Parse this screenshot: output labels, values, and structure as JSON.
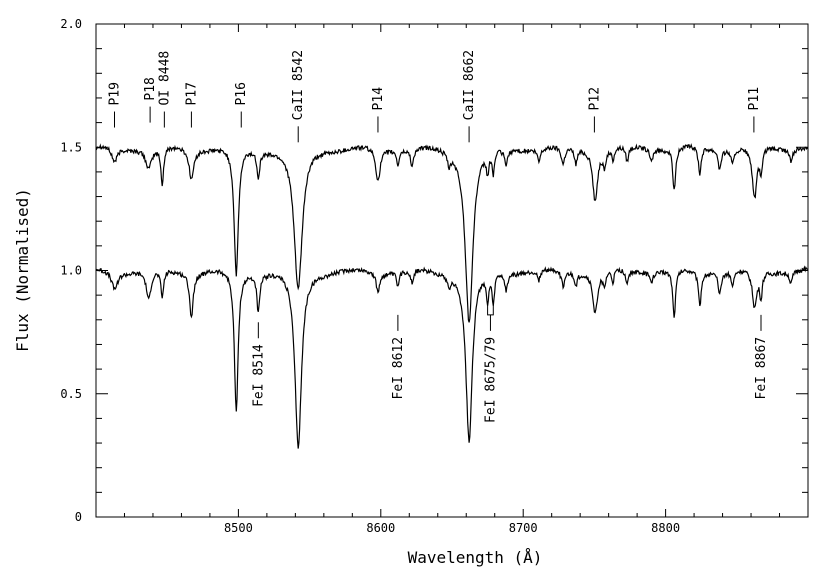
{
  "chart_data": {
    "type": "line",
    "title": "",
    "xlabel": "Wavelength (Å)",
    "ylabel": "Flux (Normalised)",
    "xlim": [
      8400,
      8900
    ],
    "ylim": [
      0,
      2.0
    ],
    "x_ticks": [
      8500,
      8600,
      8700,
      8800
    ],
    "y_ticks": [
      {
        "value": 0,
        "label": "0"
      },
      {
        "value": 0.5,
        "label": "0.5"
      },
      {
        "value": 1.0,
        "label": "1.0"
      },
      {
        "value": 1.5,
        "label": "1.5"
      },
      {
        "value": 2.0,
        "label": "2.0"
      }
    ],
    "grid": false,
    "series": [
      {
        "continuum": 1.5,
        "lines": [
          {
            "x": 8413,
            "depth": 0.06,
            "width": 2.5
          },
          {
            "x": 8437,
            "depth": 0.08,
            "width": 2.5
          },
          {
            "x": 8446.5,
            "depth": 0.15,
            "width": 1.2
          },
          {
            "x": 8467,
            "depth": 0.12,
            "width": 2.0
          },
          {
            "x": 8498.5,
            "depth": 0.52,
            "width": 1.8
          },
          {
            "x": 8514,
            "depth": 0.1,
            "width": 1.2
          },
          {
            "x": 8542,
            "depth": 0.58,
            "width": 3.5
          },
          {
            "x": 8598,
            "depth": 0.13,
            "width": 2.0
          },
          {
            "x": 8612,
            "depth": 0.06,
            "width": 1.0
          },
          {
            "x": 8622,
            "depth": 0.07,
            "width": 1.2
          },
          {
            "x": 8648,
            "depth": 0.05,
            "width": 1.2
          },
          {
            "x": 8662,
            "depth": 0.7,
            "width": 3.2
          },
          {
            "x": 8675,
            "depth": 0.08,
            "width": 1.0
          },
          {
            "x": 8679,
            "depth": 0.09,
            "width": 1.0
          },
          {
            "x": 8688,
            "depth": 0.06,
            "width": 1.5
          },
          {
            "x": 8711,
            "depth": 0.05,
            "width": 1.2
          },
          {
            "x": 8728,
            "depth": 0.07,
            "width": 1.5
          },
          {
            "x": 8737,
            "depth": 0.06,
            "width": 1.2
          },
          {
            "x": 8750.5,
            "depth": 0.21,
            "width": 2.0
          },
          {
            "x": 8757,
            "depth": 0.07,
            "width": 1.2
          },
          {
            "x": 8763,
            "depth": 0.05,
            "width": 1.0
          },
          {
            "x": 8773,
            "depth": 0.06,
            "width": 1.2
          },
          {
            "x": 8790,
            "depth": 0.05,
            "width": 1.2
          },
          {
            "x": 8806,
            "depth": 0.17,
            "width": 1.2
          },
          {
            "x": 8824,
            "depth": 0.11,
            "width": 1.2
          },
          {
            "x": 8838,
            "depth": 0.08,
            "width": 1.2
          },
          {
            "x": 8847,
            "depth": 0.06,
            "width": 1.2
          },
          {
            "x": 8862.5,
            "depth": 0.21,
            "width": 2.0
          },
          {
            "x": 8867,
            "depth": 0.1,
            "width": 1.0
          },
          {
            "x": 8888,
            "depth": 0.05,
            "width": 1.2
          }
        ]
      },
      {
        "continuum": 1.0,
        "lines": [
          {
            "x": 8413,
            "depth": 0.07,
            "width": 2.5
          },
          {
            "x": 8437,
            "depth": 0.12,
            "width": 2.0
          },
          {
            "x": 8446.5,
            "depth": 0.11,
            "width": 1.2
          },
          {
            "x": 8467,
            "depth": 0.18,
            "width": 1.5
          },
          {
            "x": 8498.5,
            "depth": 0.57,
            "width": 1.6
          },
          {
            "x": 8514,
            "depth": 0.15,
            "width": 1.2
          },
          {
            "x": 8542,
            "depth": 0.72,
            "width": 2.8
          },
          {
            "x": 8598,
            "depth": 0.08,
            "width": 1.5
          },
          {
            "x": 8612,
            "depth": 0.06,
            "width": 1.0
          },
          {
            "x": 8622,
            "depth": 0.05,
            "width": 1.2
          },
          {
            "x": 8648,
            "depth": 0.04,
            "width": 1.2
          },
          {
            "x": 8662,
            "depth": 0.69,
            "width": 2.7
          },
          {
            "x": 8675,
            "depth": 0.12,
            "width": 1.0
          },
          {
            "x": 8679,
            "depth": 0.13,
            "width": 1.0
          },
          {
            "x": 8688,
            "depth": 0.07,
            "width": 1.2
          },
          {
            "x": 8711,
            "depth": 0.04,
            "width": 1.2
          },
          {
            "x": 8728,
            "depth": 0.06,
            "width": 1.5
          },
          {
            "x": 8737,
            "depth": 0.05,
            "width": 1.2
          },
          {
            "x": 8750.5,
            "depth": 0.17,
            "width": 2.0
          },
          {
            "x": 8757,
            "depth": 0.06,
            "width": 1.2
          },
          {
            "x": 8763,
            "depth": 0.05,
            "width": 1.0
          },
          {
            "x": 8773,
            "depth": 0.05,
            "width": 1.2
          },
          {
            "x": 8790,
            "depth": 0.04,
            "width": 1.2
          },
          {
            "x": 8806,
            "depth": 0.19,
            "width": 1.2
          },
          {
            "x": 8824,
            "depth": 0.14,
            "width": 1.2
          },
          {
            "x": 8838,
            "depth": 0.09,
            "width": 1.2
          },
          {
            "x": 8847,
            "depth": 0.06,
            "width": 1.2
          },
          {
            "x": 8862.5,
            "depth": 0.15,
            "width": 2.0
          },
          {
            "x": 8867,
            "depth": 0.1,
            "width": 1.0
          },
          {
            "x": 8888,
            "depth": 0.05,
            "width": 1.2
          }
        ]
      }
    ],
    "annotations_top": [
      {
        "label": "P19",
        "x": 8413,
        "tick_y": 1.58
      },
      {
        "label": "P18",
        "x": 8438,
        "tick_y": 1.6
      },
      {
        "label": "OI 8448",
        "x": 8448,
        "tick_y": 1.58
      },
      {
        "label": "P17",
        "x": 8467,
        "tick_y": 1.58
      },
      {
        "label": "P16",
        "x": 8502,
        "tick_y": 1.58
      },
      {
        "label": "CaII 8542",
        "x": 8542,
        "tick_y": 1.52
      },
      {
        "label": "P14",
        "x": 8598,
        "tick_y": 1.56
      },
      {
        "label": "CaII 8662",
        "x": 8662,
        "tick_y": 1.52
      },
      {
        "label": "P12",
        "x": 8750,
        "tick_y": 1.56
      },
      {
        "label": "P11",
        "x": 8862,
        "tick_y": 1.56
      }
    ],
    "annotations_bottom": [
      {
        "label": "FeI 8514",
        "x": 8514,
        "tick_y": 0.79
      },
      {
        "label": "FeI 8612",
        "x": 8612,
        "tick_y": 0.82
      },
      {
        "label": "FeI 8675/79",
        "x": 8677,
        "tick_y": 0.82,
        "bracket": [
          8675,
          8679
        ]
      },
      {
        "label": "FeI 8867",
        "x": 8867,
        "tick_y": 0.82
      }
    ]
  }
}
